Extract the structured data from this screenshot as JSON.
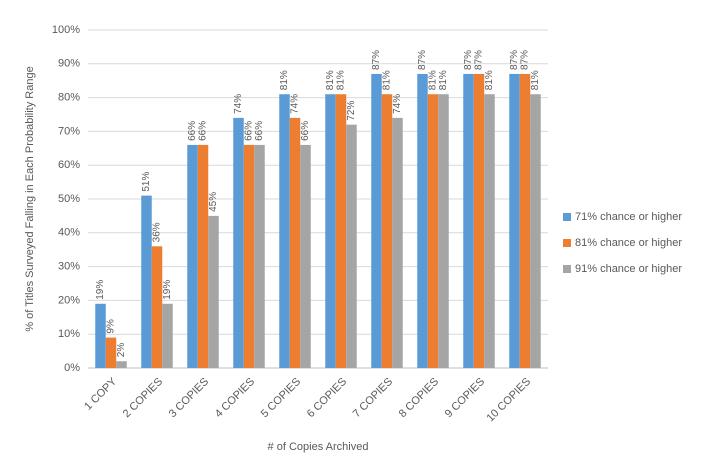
{
  "chart_data": {
    "type": "bar",
    "x_label": "# of Copies Archived",
    "y_label": "% of Titles Surveyed Falling in Each Probability Range",
    "categories": [
      "1 COPY",
      "2 COPIES",
      "3 COPIES",
      "4 COPIES",
      "5 COPIES",
      "6 COPIES",
      "7 COPIES",
      "8 COPIES",
      "9 COPIES",
      "10 COPIES"
    ],
    "series": [
      {
        "name": "71% chance or higher",
        "color": "#5b9bd5",
        "values": [
          19,
          51,
          66,
          74,
          81,
          81,
          87,
          87,
          87,
          87
        ],
        "value_labels": [
          "19%",
          "51%",
          "66%",
          "74%",
          "81%",
          "81%",
          "87%",
          "87%",
          "87%",
          "87%"
        ]
      },
      {
        "name": "81% chance or higher",
        "color": "#ed7d31",
        "values": [
          9,
          36,
          66,
          66,
          74,
          81,
          81,
          81,
          87,
          87
        ],
        "value_labels": [
          "9%",
          "36%",
          "66%",
          "66%",
          "74%",
          "81%",
          "81%",
          "81%",
          "87%",
          "87%"
        ]
      },
      {
        "name": "91% chance or higher",
        "color": "#a5a5a5",
        "values": [
          2,
          19,
          45,
          66,
          66,
          72,
          74,
          81,
          81,
          81
        ],
        "value_labels": [
          "2%",
          "19%",
          "45%",
          "66%",
          "66%",
          "72%",
          "74%",
          "81%",
          "81%",
          "81%"
        ]
      }
    ],
    "ylim": [
      0,
      100
    ],
    "yticks": [
      {
        "value": 0,
        "label": "0%"
      },
      {
        "value": 10,
        "label": "10%"
      },
      {
        "value": 20,
        "label": "20%"
      },
      {
        "value": 30,
        "label": "30%"
      },
      {
        "value": 40,
        "label": "40%"
      },
      {
        "value": 50,
        "label": "50%"
      },
      {
        "value": 60,
        "label": "60%"
      },
      {
        "value": 70,
        "label": "70%"
      },
      {
        "value": 80,
        "label": "80%"
      },
      {
        "value": 90,
        "label": "90%"
      },
      {
        "value": 100,
        "label": "100%"
      }
    ],
    "grid": true,
    "legend": "right"
  }
}
